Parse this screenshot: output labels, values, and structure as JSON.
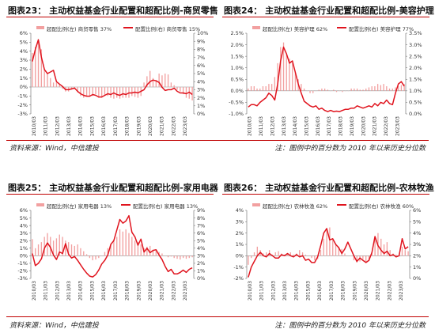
{
  "colors": {
    "accent": "#c00000",
    "line": "#e0141e",
    "bar": "#f2a0a0"
  },
  "footer": {
    "source_left_top": "资料来源：Wind，中信建投",
    "note_right_top": "注：图例中的百分数为 2010 年以来历史分位数",
    "source_left_bottom": "资料来源：Wind，中信建投",
    "note_right_bottom": "注：图例中的百分数为 2010 年以来历史分位数"
  },
  "chart_data": [
    {
      "type": "bar+line",
      "title": "图表23：  主动权益基金行业配置和超配比例-商贸零售",
      "legend": {
        "bar": "超配比例(左)  商贸零售  37%",
        "line": "配置比例(右)  商贸零售  15%"
      },
      "x_labels": [
        "2010/03",
        "2011/03",
        "2012/03",
        "2013/03",
        "2014/03",
        "2015/03",
        "2016/03",
        "2017/03",
        "2018/03",
        "2019/03",
        "2020/03",
        "2021/03",
        "2022/03",
        "2023/03"
      ],
      "left_axis": {
        "min": -3,
        "max": 6,
        "ticks": [
          "-3%",
          "-2%",
          "-1%",
          "0%",
          "1%",
          "2%",
          "3%",
          "4%",
          "5%",
          "6%"
        ]
      },
      "right_axis": {
        "min": 0,
        "max": 10,
        "ticks": [
          "0%",
          "1%",
          "2%",
          "3%",
          "4%",
          "5%",
          "6%",
          "7%",
          "8%",
          "9%",
          "10%"
        ]
      },
      "bars": [
        3.8,
        4.5,
        5,
        4.2,
        2,
        1.5,
        1,
        0.5,
        0.5,
        0.3,
        -0.2,
        -0.5,
        -0.5,
        -0.3,
        -0.2,
        -0.6,
        -1,
        -1.2,
        -1,
        -1,
        -1,
        -0.8,
        -1.2,
        -1.2,
        -1,
        -1,
        -1.2,
        -1.3,
        -1.2,
        -1.3,
        -1.2,
        -1.2,
        -1.2,
        -1,
        -1.1,
        -1.2,
        -1,
        0.5,
        1.2,
        1.8,
        1,
        0.8,
        1.5,
        1.3,
        1.5,
        1.4,
        0.5,
        0.2,
        -0.3,
        -0.5,
        -0.8,
        -1.2,
        -1.3,
        -1.5
      ],
      "line": [
        6.5,
        8,
        9.2,
        7,
        5.5,
        5,
        5.2,
        5.4,
        4,
        3.7,
        3.4,
        3,
        3,
        3.1,
        3.2,
        2.8,
        2.5,
        2.3,
        2.2,
        2.2,
        2.4,
        2.3,
        2.1,
        2.1,
        2.3,
        2.5,
        2.4,
        2.6,
        2.4,
        2.3,
        2.5,
        2.4,
        2.6,
        2.6,
        2.7,
        2.6,
        2.8,
        3,
        3.6,
        4,
        4.2,
        4.1,
        3.9,
        3.3,
        2.9,
        3,
        3,
        3.2,
        2.8,
        2.6,
        2.6,
        2.5,
        2.7,
        2.4
      ]
    },
    {
      "type": "bar+line",
      "title": "图表24：  主动权益基金行业配置和超配比例-美容护理",
      "legend": {
        "bar": "超配比例(左)  美容护理  62%",
        "line": "配置比例(右)  美容护理  77%"
      },
      "x_labels": [
        "2010/03",
        "2011/03",
        "2012/03",
        "2013/03",
        "2014/03",
        "2015/03",
        "2016/03",
        "2017/03",
        "2018/03",
        "2019/03",
        "2020/03",
        "2021/03",
        "2022/03",
        "2023/03"
      ],
      "left_axis": {
        "min": -1.0,
        "max": 2.5,
        "ticks": [
          "-1.0%",
          "-0.5%",
          "0.0%",
          "0.5%",
          "1.0%",
          "1.5%",
          "2.0%",
          "2.5%"
        ]
      },
      "right_axis": {
        "min": 0,
        "max": 3.5,
        "ticks": [
          "0.0%",
          "0.5%",
          "1.0%",
          "1.5%",
          "2.0%",
          "2.5%",
          "3.0%",
          "3.5%"
        ]
      },
      "bars": [
        0.1,
        0.2,
        0.2,
        0.1,
        0.1,
        0.2,
        0.2,
        0.3,
        0.3,
        0.6,
        1.2,
        1.9,
        2.1,
        1.6,
        1.4,
        1.2,
        0.8,
        0.5,
        0.3,
        0.1,
        0,
        -0.1,
        -0.1,
        0,
        0.05,
        0.1,
        0.1,
        0.05,
        0,
        0.05,
        -0.05,
        0,
        -0.05,
        0,
        0,
        0.1,
        0.1,
        0.1,
        0.05,
        0.05,
        0.1,
        0.15,
        0.2,
        0.2,
        0.3,
        0.25,
        0.3,
        0.2,
        0.1,
        0.1,
        0.15,
        0.2,
        0.25,
        0.3
      ],
      "line": [
        0.3,
        0.4,
        0.4,
        0.35,
        0.5,
        0.6,
        0.7,
        0.9,
        0.8,
        0.6,
        1.3,
        2.3,
        2.9,
        2.6,
        2.2,
        2.3,
        1.8,
        1.3,
        0.9,
        0.55,
        0.45,
        0.35,
        0.3,
        0.35,
        0.2,
        0.25,
        0.15,
        0.1,
        0.15,
        0.1,
        0.12,
        0.1,
        0.15,
        0.2,
        0.2,
        0.25,
        0.25,
        0.35,
        0.3,
        0.25,
        0.3,
        0.35,
        0.3,
        0.45,
        0.35,
        0.5,
        0.45,
        0.6,
        0.45,
        0.4,
        0.9,
        1.3,
        1.4,
        1.2
      ]
    },
    {
      "type": "bar+line",
      "title": "图表25：  主动权益基金行业配置和超配比例-家用电器",
      "legend": {
        "bar": "超配比例(左)  家用电器  13%",
        "line": "配置比例(右)  家用电器  13%"
      },
      "x_labels": [
        "2010/03",
        "2011/03",
        "2012/03",
        "2013/03",
        "2014/03",
        "2015/03",
        "2016/03",
        "2017/03",
        "2018/03",
        "2019/03",
        "2020/03",
        "2021/03",
        "2022/03",
        "2023/03"
      ],
      "left_axis": {
        "min": -3,
        "max": 6,
        "ticks": [
          "-3%",
          "-2%",
          "-1%",
          "0%",
          "1%",
          "2%",
          "3%",
          "4%",
          "5%",
          "6%"
        ]
      },
      "right_axis": {
        "min": 0,
        "max": 9,
        "ticks": [
          "0%",
          "1%",
          "2%",
          "3%",
          "4%",
          "5%",
          "6%",
          "7%",
          "8%",
          "9%"
        ]
      },
      "bars": [
        2.2,
        1,
        1.5,
        1.8,
        2.5,
        3,
        2.5,
        2,
        2.3,
        2.8,
        2.5,
        2,
        1.8,
        1.5,
        1.3,
        1.5,
        1,
        0.6,
        0.2,
        -0.3,
        -0.6,
        -0.5,
        -0.3,
        0,
        0.5,
        1,
        1.5,
        2,
        2.5,
        3.5,
        3.2,
        3.5,
        3,
        2.5,
        2,
        1.8,
        1.5,
        1,
        1.2,
        1.3,
        0.8,
        0.8,
        0.5,
        0.3,
        0,
        -0.2,
        -0.1,
        -0.3,
        -0.4,
        -0.5,
        -0.3,
        -0.4,
        -0.3,
        -0.2
      ],
      "line": [
        3.3,
        1.7,
        2,
        2.6,
        4,
        4.7,
        4.1,
        3.1,
        2.5,
        3.5,
        3.3,
        4.6,
        3.2,
        2.7,
        2.9,
        2.4,
        1.8,
        1.2,
        0.7,
        0.3,
        0.2,
        0.5,
        1.1,
        1.9,
        2.4,
        3.1,
        4.5,
        5,
        6.4,
        7.8,
        7.3,
        7.6,
        8.3,
        6.1,
        5.5,
        4.4,
        5.2,
        3.5,
        4,
        3.4,
        3.7,
        3.8,
        3.1,
        2.5,
        1.6,
        0.9,
        1.2,
        0.6,
        0.6,
        0.8,
        1.1,
        0.8,
        1.2,
        1.4
      ]
    },
    {
      "type": "bar+line",
      "title": "图表26：  主动权益基金行业配置和超配比例-农林牧渔",
      "legend": {
        "bar": "超配比例(左)  农林牧渔  62%",
        "line": "配置比例(右)  农林牧渔  60%"
      },
      "x_labels": [
        "2010/03",
        "2011/03",
        "2012/03",
        "2013/03",
        "2014/03",
        "2015/03",
        "2016/03",
        "2017/03",
        "2018/03",
        "2019/03",
        "2020/03",
        "2021/03",
        "2022/03",
        "2023/03"
      ],
      "left_axis": {
        "min": -2,
        "max": 4,
        "ticks": [
          "-2%",
          "-1%",
          "0%",
          "1%",
          "2%",
          "3%",
          "4%"
        ]
      },
      "right_axis": {
        "min": 0,
        "max": 6,
        "ticks": [
          "0%",
          "1%",
          "2%",
          "3%",
          "4%",
          "5%",
          "6%"
        ]
      },
      "bars": [
        -0.8,
        -0.2,
        0.3,
        0.8,
        0.5,
        0.2,
        0.3,
        0.5,
        0.1,
        0.3,
        0.4,
        0.2,
        0.1,
        0.2,
        0.3,
        0.1,
        0.2,
        0.5,
        0.3,
        0.1,
        0,
        -0.2,
        -0.4,
        -0.3,
        0.5,
        1.5,
        2.3,
        2.5,
        1.5,
        1,
        0.8,
        0.6,
        0.2,
        0,
        0,
        -0.4,
        -0.6,
        -0.5,
        -0.3,
        -0.5,
        -0.4,
        0.2,
        1.5,
        2,
        1.5,
        1,
        1.2,
        0.5,
        0.2,
        0.1,
        0.2,
        0.8,
        0.5,
        0.4
      ],
      "line": [
        0.1,
        1,
        1.5,
        2,
        2.3,
        2,
        1.9,
        2.2,
        2,
        1.8,
        1.8,
        2.1,
        2,
        2.2,
        2,
        1.9,
        2.1,
        1.9,
        2,
        1.6,
        1.7,
        1.4,
        1.4,
        1.9,
        2.9,
        4,
        4.4,
        3.4,
        3.5,
        3,
        2.7,
        2.2,
        2.6,
        3.2,
        2.6,
        2,
        1.5,
        1.8,
        1.6,
        1.4,
        1.6,
        2.3,
        3.7,
        2.9,
        2.5,
        2.2,
        2.4,
        2,
        2.1,
        1.9,
        2,
        3.5,
        2.6,
        2.8
      ]
    }
  ]
}
